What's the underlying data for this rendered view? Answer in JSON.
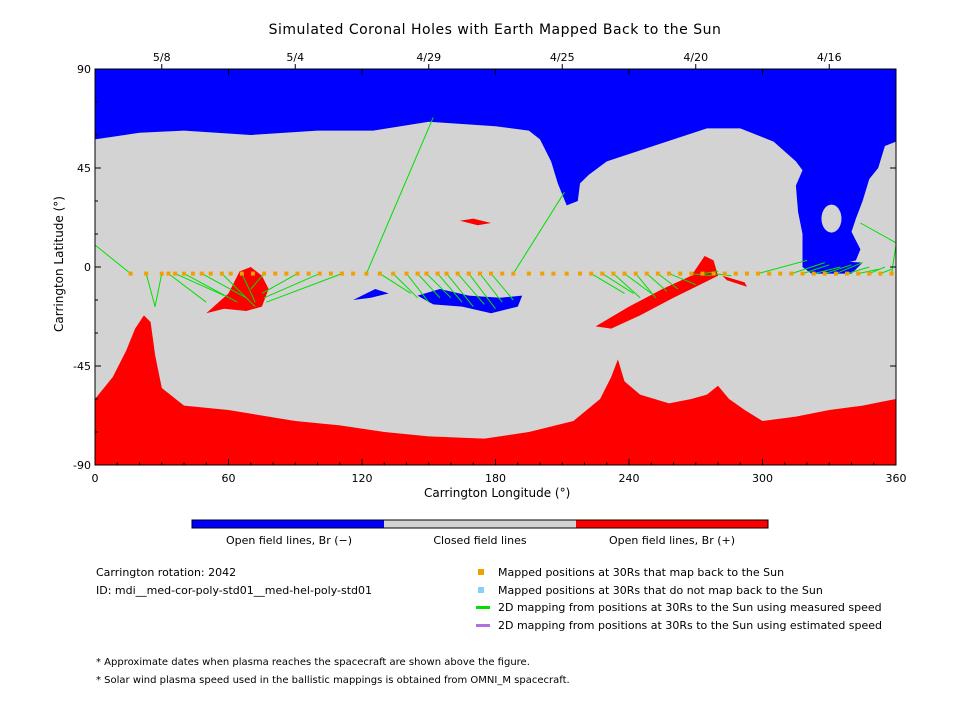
{
  "chart_data": {
    "type": "map",
    "title": "Simulated Coronal Holes with Earth Mapped Back to the Sun",
    "xlabel": "Carrington Longitude (°)",
    "ylabel": "Carrington Latitude (°)",
    "xlim": [
      0,
      360
    ],
    "ylim": [
      -90,
      90
    ],
    "x_ticks": [
      "0",
      "60",
      "120",
      "180",
      "240",
      "300",
      "360"
    ],
    "y_ticks": [
      "90",
      "45",
      "0",
      "-45",
      "-90"
    ],
    "top_dates": [
      {
        "x": 30,
        "label": "5/8"
      },
      {
        "x": 90,
        "label": "5/4"
      },
      {
        "x": 150,
        "label": "4/29"
      },
      {
        "x": 210,
        "label": "4/25"
      },
      {
        "x": 270,
        "label": "4/20"
      },
      {
        "x": 330,
        "label": "4/16"
      }
    ],
    "colors": {
      "negative": "#0000ff",
      "closed": "#d3d3d3",
      "positive": "#ff0000",
      "mapped": "#f0a000",
      "unmapped": "#87cefa",
      "measured": "#00e000",
      "estimated": "#b070e0"
    },
    "mapped_points_lat": -3,
    "mapped_points_x": [
      16,
      23,
      30,
      33,
      36,
      40,
      44,
      48,
      52,
      57,
      61,
      66,
      71,
      76,
      81,
      86,
      91,
      96,
      101,
      106,
      111,
      116,
      122,
      128,
      134,
      140,
      145,
      149,
      154,
      158,
      163,
      168,
      173,
      178,
      183,
      188,
      195,
      201,
      206,
      212,
      218,
      223,
      228,
      233,
      238,
      243,
      248,
      253,
      258,
      263,
      268,
      273,
      278,
      283,
      288,
      293,
      298,
      303,
      308,
      313,
      318,
      323,
      328,
      333,
      338,
      343,
      348,
      353,
      358
    ],
    "measured_lines": [
      [
        [
          0,
          10
        ],
        [
          16,
          -3
        ]
      ],
      [
        [
          23,
          -3
        ],
        [
          27,
          -18
        ]
      ],
      [
        [
          30,
          -3
        ],
        [
          27,
          -18
        ]
      ],
      [
        [
          33,
          -3
        ],
        [
          50,
          -16
        ]
      ],
      [
        [
          36,
          -3
        ],
        [
          58,
          -13
        ]
      ],
      [
        [
          40,
          -3
        ],
        [
          64,
          -16
        ]
      ],
      [
        [
          48,
          -3
        ],
        [
          68,
          -14
        ]
      ],
      [
        [
          57,
          -3
        ],
        [
          72,
          -18
        ]
      ],
      [
        [
          66,
          -3
        ],
        [
          72,
          -16
        ]
      ],
      [
        [
          76,
          -3
        ],
        [
          70,
          -10
        ]
      ],
      [
        [
          91,
          -3
        ],
        [
          75,
          -12
        ]
      ],
      [
        [
          101,
          -3
        ],
        [
          76,
          -14
        ]
      ],
      [
        [
          111,
          -3
        ],
        [
          77,
          -16
        ]
      ],
      [
        [
          122,
          -3
        ],
        [
          152,
          68
        ]
      ],
      [
        [
          128,
          -3
        ],
        [
          142,
          -12
        ]
      ],
      [
        [
          134,
          -3
        ],
        [
          145,
          -14
        ]
      ],
      [
        [
          140,
          -3
        ],
        [
          150,
          -16
        ]
      ],
      [
        [
          145,
          -3
        ],
        [
          155,
          -14
        ]
      ],
      [
        [
          149,
          -3
        ],
        [
          160,
          -14
        ]
      ],
      [
        [
          154,
          -3
        ],
        [
          165,
          -16
        ]
      ],
      [
        [
          158,
          -3
        ],
        [
          170,
          -18
        ]
      ],
      [
        [
          163,
          -3
        ],
        [
          175,
          -17
        ]
      ],
      [
        [
          168,
          -3
        ],
        [
          180,
          -19
        ]
      ],
      [
        [
          173,
          -3
        ],
        [
          183,
          -16
        ]
      ],
      [
        [
          178,
          -3
        ],
        [
          188,
          -15
        ]
      ],
      [
        [
          188,
          -3
        ],
        [
          211,
          34
        ]
      ],
      [
        [
          223,
          -3
        ],
        [
          238,
          -12
        ]
      ],
      [
        [
          228,
          -3
        ],
        [
          242,
          -12
        ]
      ],
      [
        [
          233,
          -3
        ],
        [
          245,
          -14
        ]
      ],
      [
        [
          238,
          -3
        ],
        [
          250,
          -12
        ]
      ],
      [
        [
          243,
          -3
        ],
        [
          252,
          -14
        ]
      ],
      [
        [
          248,
          -3
        ],
        [
          257,
          -11
        ]
      ],
      [
        [
          253,
          -3
        ],
        [
          262,
          -10
        ]
      ],
      [
        [
          258,
          -3
        ],
        [
          270,
          -8
        ]
      ],
      [
        [
          268,
          -3
        ],
        [
          277,
          -4
        ]
      ],
      [
        [
          273,
          -3
        ],
        [
          280,
          -2
        ]
      ],
      [
        [
          278,
          -3
        ],
        [
          286,
          -4
        ]
      ],
      [
        [
          298,
          -3
        ],
        [
          320,
          3
        ]
      ],
      [
        [
          313,
          -3
        ],
        [
          328,
          2
        ]
      ],
      [
        [
          318,
          -3
        ],
        [
          330,
          1
        ]
      ],
      [
        [
          323,
          -3
        ],
        [
          335,
          0
        ]
      ],
      [
        [
          328,
          -3
        ],
        [
          340,
          1
        ]
      ],
      [
        [
          333,
          -3
        ],
        [
          345,
          2
        ]
      ],
      [
        [
          338,
          -3
        ],
        [
          348,
          0
        ]
      ],
      [
        [
          343,
          -3
        ],
        [
          352,
          -1
        ]
      ],
      [
        [
          348,
          -3
        ],
        [
          355,
          0
        ]
      ],
      [
        [
          353,
          -3
        ],
        [
          358,
          -1
        ]
      ],
      [
        [
          358,
          -3
        ],
        [
          360,
          10
        ]
      ],
      [
        [
          344,
          20
        ],
        [
          360,
          11
        ]
      ]
    ]
  },
  "colorbar": {
    "left_label": "Open field lines, Br (−)",
    "mid_label": "Closed field lines",
    "right_label": "Open field lines, Br (+)"
  },
  "info": {
    "rotation": "Carrington rotation: 2042",
    "id": "ID: mdi__med-cor-poly-std01__med-hel-poly-std01"
  },
  "legend": {
    "mapped": "Mapped positions at 30Rs that map back to the Sun",
    "unmapped": "Mapped positions at 30Rs that do not map back to the Sun",
    "measured": "2D mapping from positions at 30Rs to the Sun using measured speed",
    "estimated": "2D mapping from positions at 30Rs to the Sun using estimated speed"
  },
  "notes": {
    "note1": "* Approximate dates when plasma reaches the spacecraft are shown above the figure.",
    "note2": "* Solar wind plasma speed used in the ballistic mappings is obtained from OMNI_M spacecraft."
  }
}
